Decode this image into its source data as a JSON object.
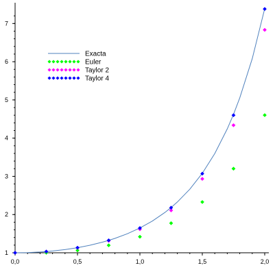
{
  "chart_data": {
    "type": "scatter",
    "title": "",
    "xlabel": "",
    "ylabel": "",
    "xlim": [
      0,
      2.0
    ],
    "ylim": [
      1,
      7.4
    ],
    "grid": false,
    "legend_position": "upper-left",
    "x_ticks": [
      {
        "value": 0,
        "label": "0,0"
      },
      {
        "value": 0.5,
        "label": "0,5"
      },
      {
        "value": 1.0,
        "label": "1,0"
      },
      {
        "value": 1.5,
        "label": "1,5"
      },
      {
        "value": 2.0,
        "label": "2,0"
      }
    ],
    "y_ticks": [
      {
        "value": 1,
        "label": "1"
      },
      {
        "value": 2,
        "label": "2"
      },
      {
        "value": 3,
        "label": "3"
      },
      {
        "value": 4,
        "label": "4"
      },
      {
        "value": 5,
        "label": "5"
      },
      {
        "value": 6,
        "label": "6"
      },
      {
        "value": 7,
        "label": "7"
      }
    ],
    "series": [
      {
        "name": "Exacta",
        "kind": "line",
        "color": "#4f81bd",
        "points": [
          [
            0,
            1.0
          ],
          [
            0.1,
            1.005
          ],
          [
            0.2,
            1.02
          ],
          [
            0.25,
            1.032
          ],
          [
            0.3,
            1.046
          ],
          [
            0.4,
            1.083
          ],
          [
            0.5,
            1.133
          ],
          [
            0.6,
            1.197
          ],
          [
            0.7,
            1.278
          ],
          [
            0.75,
            1.325
          ],
          [
            0.8,
            1.377
          ],
          [
            0.9,
            1.499
          ],
          [
            1.0,
            1.649
          ],
          [
            1.1,
            1.831
          ],
          [
            1.2,
            2.054
          ],
          [
            1.25,
            2.184
          ],
          [
            1.3,
            2.328
          ],
          [
            1.4,
            2.664
          ],
          [
            1.5,
            3.08
          ],
          [
            1.6,
            3.597
          ],
          [
            1.7,
            4.242
          ],
          [
            1.75,
            4.622
          ],
          [
            1.8,
            5.053
          ],
          [
            1.9,
            6.079
          ],
          [
            2.0,
            7.389
          ]
        ]
      },
      {
        "name": "Euler",
        "kind": "markers",
        "color": "#00ff00",
        "points": [
          [
            0,
            1.0
          ],
          [
            0.25,
            1.0
          ],
          [
            0.5,
            1.063
          ],
          [
            0.75,
            1.195
          ],
          [
            1.0,
            1.419
          ],
          [
            1.25,
            1.774
          ],
          [
            1.5,
            2.328
          ],
          [
            1.75,
            3.201
          ],
          [
            2.0,
            4.602
          ]
        ]
      },
      {
        "name": "Taylor 2",
        "kind": "markers",
        "color": "#ff00ff",
        "points": [
          [
            0,
            1.0
          ],
          [
            0.25,
            1.031
          ],
          [
            0.5,
            1.128
          ],
          [
            0.75,
            1.312
          ],
          [
            1.0,
            1.615
          ],
          [
            1.25,
            2.109
          ],
          [
            1.5,
            2.934
          ],
          [
            1.75,
            4.338
          ],
          [
            2.0,
            6.833
          ]
        ]
      },
      {
        "name": "Taylor 4",
        "kind": "markers",
        "color": "#0000ff",
        "points": [
          [
            0,
            1.0
          ],
          [
            0.25,
            1.032
          ],
          [
            0.5,
            1.133
          ],
          [
            0.75,
            1.325
          ],
          [
            1.0,
            1.647
          ],
          [
            1.25,
            2.18
          ],
          [
            1.5,
            3.07
          ],
          [
            1.75,
            4.6
          ],
          [
            2.0,
            7.38
          ]
        ]
      }
    ]
  }
}
